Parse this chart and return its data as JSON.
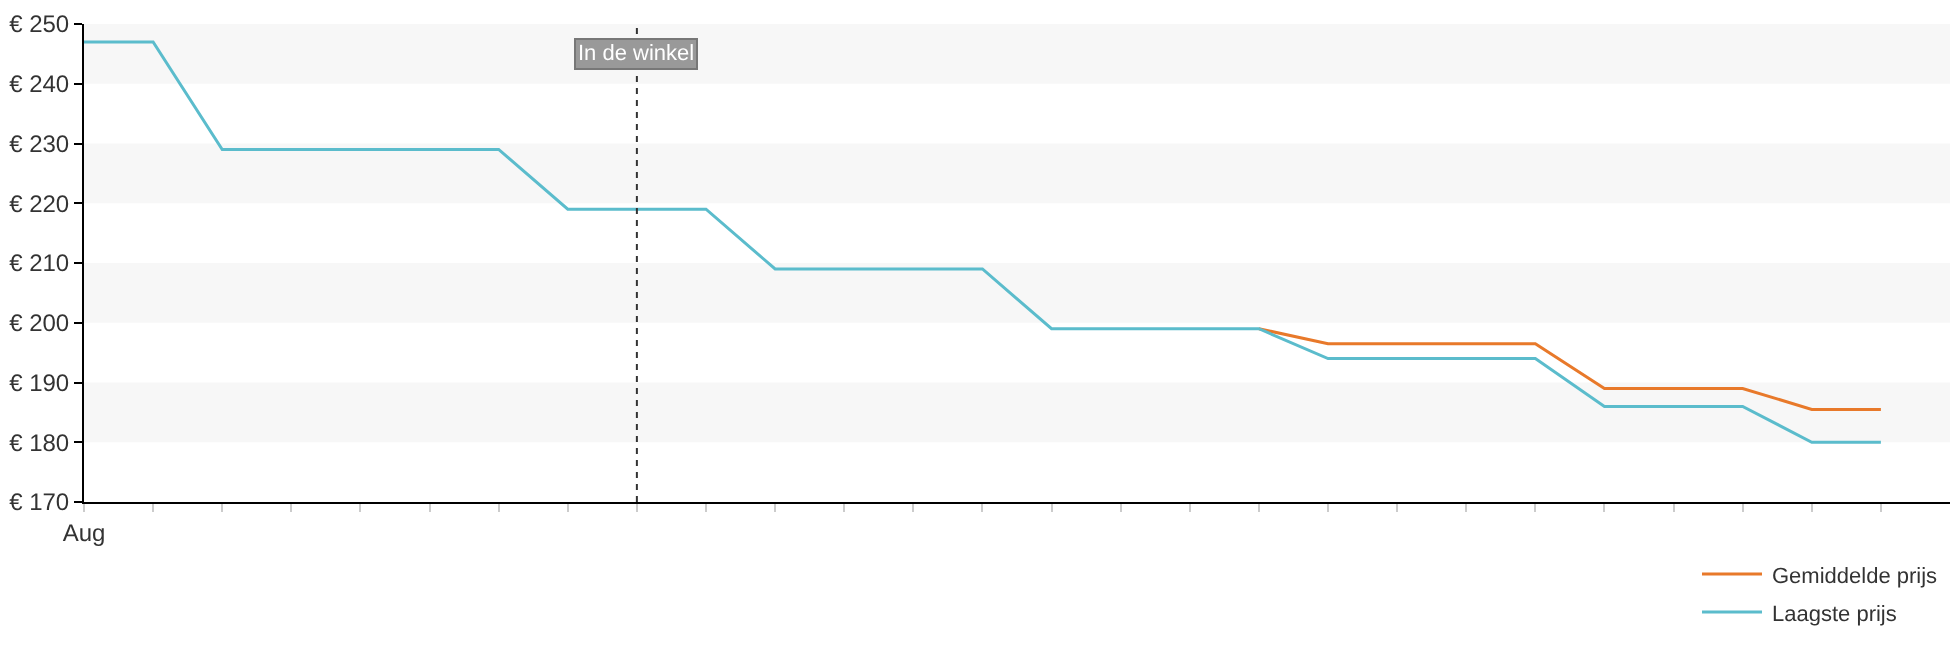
{
  "chart_data": {
    "type": "line",
    "categories": [
      "Aug",
      null,
      null,
      null,
      null,
      null,
      null,
      null,
      null,
      null,
      null,
      null,
      null,
      null,
      null,
      null,
      null,
      null,
      null,
      null,
      null,
      null,
      null,
      null,
      null,
      null,
      null
    ],
    "series": [
      {
        "name": "Gemiddelde prijs",
        "color": "#e8792a",
        "values": [
          null,
          null,
          null,
          null,
          null,
          null,
          null,
          null,
          null,
          null,
          null,
          null,
          null,
          null,
          null,
          null,
          null,
          199,
          196.5,
          196.5,
          196.5,
          196.5,
          189,
          189,
          189,
          185.5,
          185.5
        ]
      },
      {
        "name": "Laagste prijs",
        "color": "#5bbccc",
        "values": [
          247,
          247,
          229,
          229,
          229,
          229,
          229,
          219,
          219,
          219,
          209,
          209,
          209,
          209,
          199,
          199,
          199,
          199,
          194,
          194,
          194,
          194,
          186,
          186,
          186,
          180,
          180
        ]
      }
    ],
    "ylim": [
      170,
      250
    ],
    "yticks": [
      {
        "value": 170,
        "label": "€ 170"
      },
      {
        "value": 180,
        "label": "€ 180"
      },
      {
        "value": 190,
        "label": "€ 190"
      },
      {
        "value": 200,
        "label": "€ 200"
      },
      {
        "value": 210,
        "label": "€ 210"
      },
      {
        "value": 220,
        "label": "€ 220"
      },
      {
        "value": 230,
        "label": "€ 230"
      },
      {
        "value": 240,
        "label": "€ 240"
      },
      {
        "value": 250,
        "label": "€ 250"
      }
    ],
    "annotations": [
      "In de winkel"
    ],
    "bands": [
      {
        "axis": "y",
        "from": 240,
        "to": 250,
        "color": "#f7f7f7"
      },
      {
        "axis": "y",
        "from": 220,
        "to": 230,
        "color": "#f7f7f7"
      },
      {
        "axis": "y",
        "from": 200,
        "to": 210,
        "color": "#f7f7f7"
      },
      {
        "axis": "y",
        "from": 180,
        "to": 190,
        "color": "#f7f7f7"
      }
    ],
    "legend": "bottom right",
    "marker": "none",
    "line_style": "solid"
  }
}
